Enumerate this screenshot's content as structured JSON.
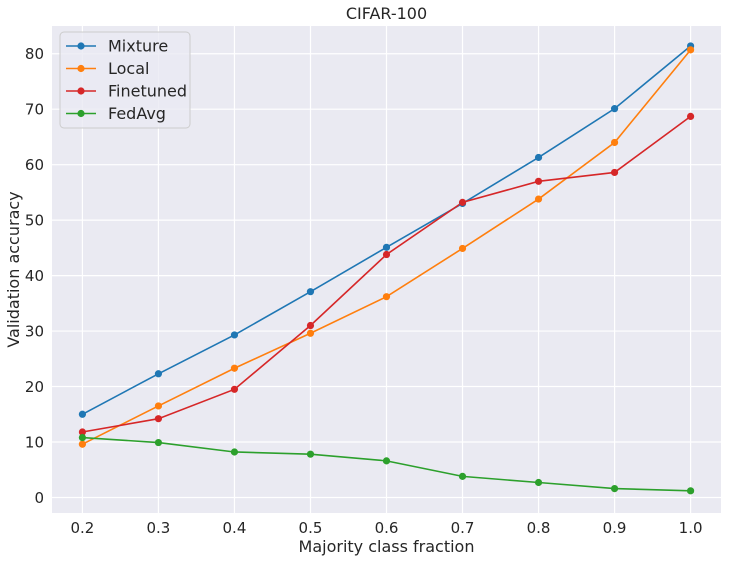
{
  "chart_data": {
    "type": "line",
    "title": "CIFAR-100",
    "xlabel": "Majority class fraction",
    "ylabel": "Validation accuracy",
    "x": [
      0.2,
      0.3,
      0.4,
      0.5,
      0.6,
      0.7,
      0.8,
      0.9,
      1.0
    ],
    "x_tick_labels": [
      "0.2",
      "0.3",
      "0.4",
      "0.5",
      "0.6",
      "0.7",
      "0.8",
      "0.9",
      "1.0"
    ],
    "y_ticks": [
      0,
      10,
      20,
      30,
      40,
      50,
      60,
      70,
      80
    ],
    "y_tick_labels": [
      "0",
      "10",
      "20",
      "30",
      "40",
      "50",
      "60",
      "70",
      "80"
    ],
    "xlim": [
      0.16,
      1.04
    ],
    "ylim": [
      -2.8,
      85
    ],
    "grid": true,
    "legend_position": "top-left",
    "series": [
      {
        "name": "Mixture",
        "color": "#1f77b4",
        "values": [
          15.0,
          22.3,
          29.3,
          37.1,
          45.1,
          53.0,
          61.3,
          70.1,
          81.4
        ]
      },
      {
        "name": "Local",
        "color": "#ff7f0e",
        "values": [
          9.6,
          16.5,
          23.3,
          29.6,
          36.2,
          44.9,
          53.8,
          64.0,
          80.7
        ]
      },
      {
        "name": "Finetuned",
        "color": "#d62728",
        "values": [
          11.8,
          14.2,
          19.5,
          31.0,
          43.8,
          53.2,
          57.0,
          58.6,
          68.7
        ]
      },
      {
        "name": "FedAvg",
        "color": "#2ca02c",
        "values": [
          10.8,
          9.9,
          8.2,
          7.8,
          6.6,
          3.8,
          2.7,
          1.6,
          1.2
        ]
      }
    ]
  }
}
